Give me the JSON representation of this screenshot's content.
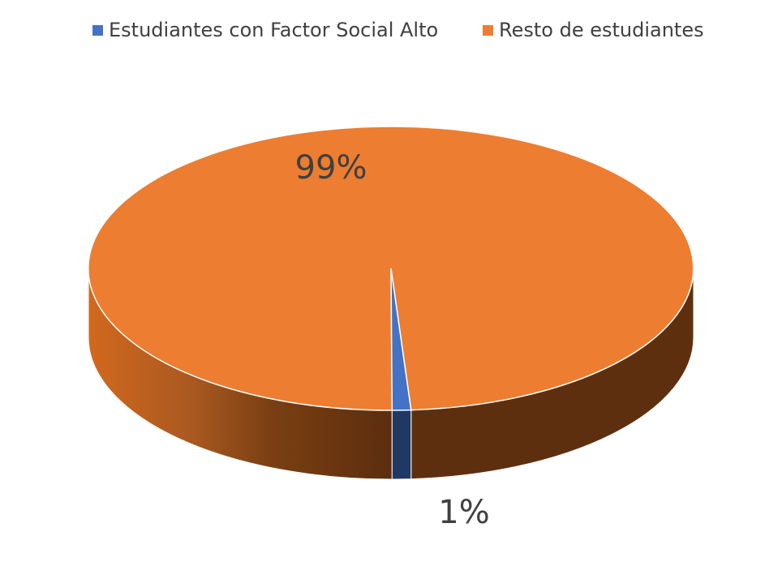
{
  "chart_data": {
    "type": "pie",
    "style": "3d",
    "title": "",
    "categories": [
      "Estudiantes con Factor Social Alto",
      "Resto de estudiantes"
    ],
    "values": [
      1,
      99
    ],
    "data_labels": [
      "1%",
      "99%"
    ],
    "colors": [
      "#4472C4",
      "#ED7D31"
    ],
    "side_colors": [
      "#203864",
      "#C55A11"
    ],
    "legend_position": "top"
  }
}
